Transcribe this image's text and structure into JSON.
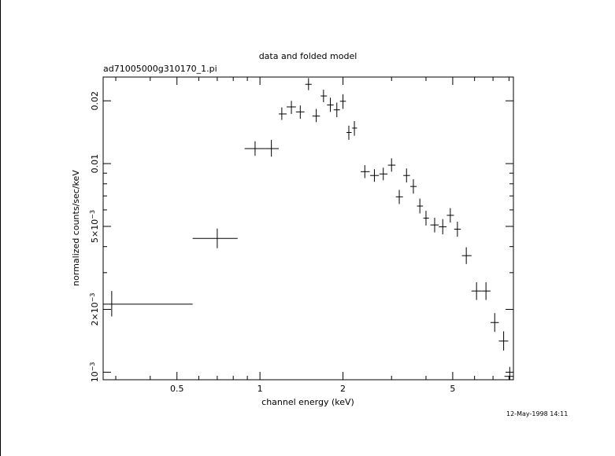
{
  "chart_data": {
    "type": "scatter",
    "title": "data and folded model",
    "subtitle": "ad71005000g310170_1.pi",
    "xlabel": "channel energy (keV)",
    "ylabel": "normalized counts/sec/keV",
    "x_scale": "log",
    "y_scale": "log",
    "xlim": [
      0.27,
      8.3
    ],
    "ylim": [
      0.00092,
      0.026
    ],
    "x_tick_labels": [
      {
        "value": 0.5,
        "label": "0.5"
      },
      {
        "value": 1,
        "label": "1"
      },
      {
        "value": 2,
        "label": "2"
      },
      {
        "value": 5,
        "label": "5"
      }
    ],
    "y_tick_labels": [
      {
        "value": 0.001,
        "label": "10",
        "exp": "−3"
      },
      {
        "value": 0.002,
        "label": "2×10",
        "exp": "−3"
      },
      {
        "value": 0.005,
        "label": "5×10",
        "exp": "−3"
      },
      {
        "value": 0.01,
        "label": "0.01"
      },
      {
        "value": 0.02,
        "label": "0.02"
      }
    ],
    "x_minor_ticks": [
      0.3,
      0.4,
      0.6,
      0.7,
      0.8,
      0.9,
      3,
      4,
      6,
      7,
      8
    ],
    "y_minor_ticks": [
      0.003,
      0.004,
      0.006,
      0.007,
      0.008,
      0.009
    ],
    "grid": false,
    "legend": "none",
    "series": [
      {
        "points": [
          {
            "x": 0.29,
            "xlo": 0.27,
            "xhi": 0.57,
            "y": 0.00212,
            "ylo": 0.00185,
            "yhi": 0.00245
          },
          {
            "x": 0.7,
            "xlo": 0.57,
            "xhi": 0.83,
            "y": 0.00438,
            "ylo": 0.00393,
            "yhi": 0.00488
          },
          {
            "x": 0.96,
            "xlo": 0.88,
            "xhi": 1.04,
            "y": 0.0118,
            "ylo": 0.0109,
            "yhi": 0.0128
          },
          {
            "x": 1.1,
            "xlo": 1.04,
            "xhi": 1.17,
            "y": 0.0118,
            "ylo": 0.0108,
            "yhi": 0.013
          },
          {
            "x": 1.2,
            "xlo": 1.17,
            "xhi": 1.25,
            "y": 0.0173,
            "ylo": 0.0162,
            "yhi": 0.0186
          },
          {
            "x": 1.3,
            "xlo": 1.25,
            "xhi": 1.35,
            "y": 0.0187,
            "ylo": 0.0173,
            "yhi": 0.02
          },
          {
            "x": 1.4,
            "xlo": 1.35,
            "xhi": 1.45,
            "y": 0.0177,
            "ylo": 0.0164,
            "yhi": 0.019
          },
          {
            "x": 1.5,
            "xlo": 1.46,
            "xhi": 1.54,
            "y": 0.024,
            "ylo": 0.0225,
            "yhi": 0.0257
          },
          {
            "x": 1.6,
            "xlo": 1.55,
            "xhi": 1.65,
            "y": 0.0169,
            "ylo": 0.0158,
            "yhi": 0.0183
          },
          {
            "x": 1.7,
            "xlo": 1.66,
            "xhi": 1.75,
            "y": 0.0211,
            "ylo": 0.0197,
            "yhi": 0.0226
          },
          {
            "x": 1.8,
            "xlo": 1.75,
            "xhi": 1.85,
            "y": 0.0191,
            "ylo": 0.0177,
            "yhi": 0.0207
          },
          {
            "x": 1.9,
            "xlo": 1.85,
            "xhi": 1.95,
            "y": 0.0181,
            "ylo": 0.0167,
            "yhi": 0.0196
          },
          {
            "x": 2.0,
            "xlo": 1.95,
            "xhi": 2.05,
            "y": 0.0199,
            "ylo": 0.0183,
            "yhi": 0.0215
          },
          {
            "x": 2.1,
            "xlo": 2.06,
            "xhi": 2.15,
            "y": 0.0141,
            "ylo": 0.013,
            "yhi": 0.0152
          },
          {
            "x": 2.2,
            "xlo": 2.16,
            "xhi": 2.25,
            "y": 0.0148,
            "ylo": 0.0136,
            "yhi": 0.016
          },
          {
            "x": 2.4,
            "xlo": 2.32,
            "xhi": 2.5,
            "y": 0.00915,
            "ylo": 0.00852,
            "yhi": 0.00983
          },
          {
            "x": 2.6,
            "xlo": 2.51,
            "xhi": 2.7,
            "y": 0.00877,
            "ylo": 0.00818,
            "yhi": 0.0094
          },
          {
            "x": 2.8,
            "xlo": 2.71,
            "xhi": 2.9,
            "y": 0.00892,
            "ylo": 0.00832,
            "yhi": 0.00956
          },
          {
            "x": 3.0,
            "xlo": 2.91,
            "xhi": 3.1,
            "y": 0.00983,
            "ylo": 0.00915,
            "yhi": 0.0106
          },
          {
            "x": 3.2,
            "xlo": 3.11,
            "xhi": 3.3,
            "y": 0.00693,
            "ylo": 0.0064,
            "yhi": 0.00748
          },
          {
            "x": 3.4,
            "xlo": 3.31,
            "xhi": 3.5,
            "y": 0.00877,
            "ylo": 0.00812,
            "yhi": 0.00948
          },
          {
            "x": 3.6,
            "xlo": 3.51,
            "xhi": 3.7,
            "y": 0.00777,
            "ylo": 0.00718,
            "yhi": 0.00842
          },
          {
            "x": 3.8,
            "xlo": 3.71,
            "xhi": 3.9,
            "y": 0.00626,
            "ylo": 0.00577,
            "yhi": 0.0068
          },
          {
            "x": 4.0,
            "xlo": 3.91,
            "xhi": 4.1,
            "y": 0.00548,
            "ylo": 0.00505,
            "yhi": 0.00594
          },
          {
            "x": 4.3,
            "xlo": 4.15,
            "xhi": 4.45,
            "y": 0.00508,
            "ylo": 0.00468,
            "yhi": 0.0055
          },
          {
            "x": 4.6,
            "xlo": 4.45,
            "xhi": 4.75,
            "y": 0.00498,
            "ylo": 0.00458,
            "yhi": 0.00542
          },
          {
            "x": 4.9,
            "xlo": 4.76,
            "xhi": 5.05,
            "y": 0.00565,
            "ylo": 0.00522,
            "yhi": 0.00612
          },
          {
            "x": 5.2,
            "xlo": 5.06,
            "xhi": 5.35,
            "y": 0.00485,
            "ylo": 0.00446,
            "yhi": 0.00527
          },
          {
            "x": 5.6,
            "xlo": 5.4,
            "xhi": 5.85,
            "y": 0.00362,
            "ylo": 0.0033,
            "yhi": 0.00397
          },
          {
            "x": 6.1,
            "xlo": 5.85,
            "xhi": 6.35,
            "y": 0.00245,
            "ylo": 0.00222,
            "yhi": 0.0027
          },
          {
            "x": 6.6,
            "xlo": 6.36,
            "xhi": 6.85,
            "y": 0.00245,
            "ylo": 0.00222,
            "yhi": 0.0027
          },
          {
            "x": 7.1,
            "xlo": 6.86,
            "xhi": 7.35,
            "y": 0.00173,
            "ylo": 0.00156,
            "yhi": 0.00192
          },
          {
            "x": 7.65,
            "xlo": 7.35,
            "xhi": 7.95,
            "y": 0.00141,
            "ylo": 0.00127,
            "yhi": 0.00157
          },
          {
            "x": 8.05,
            "xlo": 7.7,
            "xhi": 8.3,
            "y": 0.000955,
            "ylo": 0.00089,
            "yhi": 0.00106
          }
        ]
      }
    ]
  },
  "footer": {
    "timestamp": "12-May-1998 14:11"
  }
}
